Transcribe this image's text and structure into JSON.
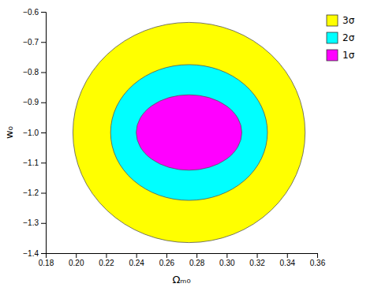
{
  "chart_data": {
    "type": "ellipse",
    "xlabel": "Ωₘ₀",
    "ylabel": "w₀",
    "xlim": [
      0.18,
      0.36
    ],
    "ylim": [
      -1.4,
      -0.6
    ],
    "xticks": [
      0.18,
      {
        "value": 0.2,
        "label": "0.20"
      },
      0.22,
      0.24,
      0.26,
      0.28,
      {
        "value": 0.3,
        "label": "0.30"
      },
      0.32,
      0.34,
      0.36
    ],
    "yticks": [
      {
        "value": -1.4,
        "label": "−1.4"
      },
      {
        "value": -1.3,
        "label": "−1.3"
      },
      {
        "value": -1.2,
        "label": "−1.2"
      },
      {
        "value": -1.1,
        "label": "−1.1"
      },
      {
        "value": -1.0,
        "label": "−1.0"
      },
      {
        "value": -0.9,
        "label": "−0.9"
      },
      {
        "value": -0.8,
        "label": "−0.8"
      },
      {
        "value": -0.7,
        "label": "−0.7"
      },
      {
        "value": -0.6,
        "label": "−0.6"
      }
    ],
    "center_x": 0.275,
    "center_y": -1.0,
    "angle": 0,
    "series": [
      {
        "name": "3σ",
        "color": "#FFFF00",
        "rx": 0.077,
        "ry": 0.365
      },
      {
        "name": "2σ",
        "color": "#00FFFF",
        "rx": 0.052,
        "ry": 0.225
      },
      {
        "name": "1σ",
        "color": "#FF00FF",
        "rx": 0.035,
        "ry": 0.125
      }
    ],
    "grid": false,
    "legend": "right"
  }
}
